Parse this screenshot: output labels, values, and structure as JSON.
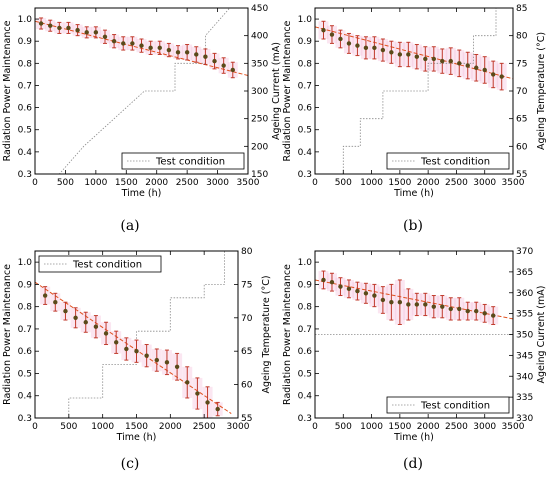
{
  "chart_data": [
    {
      "id": "a",
      "type": "line",
      "caption": "(a)",
      "xlabel": "Time (h)",
      "ylabel": "Radiation Power Maintenance",
      "y2label": "Ageing Current (mA)",
      "xlim": [
        0,
        3500
      ],
      "ylim": [
        0.3,
        1.05
      ],
      "y2lim": [
        150,
        450
      ],
      "xticks": [
        "0",
        "500",
        "1000",
        "1500",
        "2000",
        "2500",
        "3000",
        "3500"
      ],
      "yticks": [
        "0.3",
        "0.4",
        "0.5",
        "0.6",
        "0.7",
        "0.8",
        "0.9",
        "1.0"
      ],
      "y2ticks": [
        "150",
        "200",
        "250",
        "300",
        "350",
        "400",
        "450"
      ],
      "legend": {
        "label": "Test condition",
        "position": "lower-right"
      },
      "series": [
        {
          "x": [
            100,
            250,
            400,
            550,
            700,
            850,
            1000,
            1150,
            1300,
            1450,
            1600,
            1750,
            1900,
            2050,
            2200,
            2350,
            2500,
            2650,
            2800,
            2950,
            3100,
            3250
          ],
          "y": [
            0.98,
            0.97,
            0.96,
            0.96,
            0.95,
            0.94,
            0.94,
            0.92,
            0.9,
            0.89,
            0.89,
            0.88,
            0.87,
            0.87,
            0.86,
            0.85,
            0.85,
            0.84,
            0.83,
            0.81,
            0.79,
            0.77
          ],
          "err": [
            0.025,
            0.025,
            0.025,
            0.025,
            0.025,
            0.025,
            0.025,
            0.03,
            0.03,
            0.03,
            0.03,
            0.03,
            0.03,
            0.03,
            0.03,
            0.03,
            0.035,
            0.035,
            0.035,
            0.035,
            0.035,
            0.035
          ]
        }
      ],
      "fit": {
        "x": [
          0,
          3500
        ],
        "y": [
          0.99,
          0.745
        ]
      },
      "condition": {
        "x": [
          0,
          400,
          800,
          800,
          1300,
          1300,
          1800,
          1800,
          2300,
          2300,
          2800,
          2800,
          3200,
          3500
        ],
        "y": [
          150,
          150,
          200,
          200,
          250,
          250,
          300,
          300,
          300,
          350,
          350,
          400,
          450,
          450
        ]
      }
    },
    {
      "id": "b",
      "type": "line",
      "caption": "(b)",
      "xlabel": "Time (h)",
      "ylabel": "Radiation Power Maintenance",
      "y2label": "Ageing Temperature (°C)",
      "xlim": [
        0,
        3500
      ],
      "ylim": [
        0.3,
        1.05
      ],
      "y2lim": [
        55,
        85
      ],
      "xticks": [
        "0",
        "500",
        "1000",
        "1500",
        "2000",
        "2500",
        "3000",
        "3500"
      ],
      "yticks": [
        "0.3",
        "0.4",
        "0.5",
        "0.6",
        "0.7",
        "0.8",
        "0.9",
        "1.0"
      ],
      "y2ticks": [
        "55",
        "60",
        "65",
        "70",
        "75",
        "80",
        "85"
      ],
      "legend": {
        "label": "Test condition",
        "position": "lower-right"
      },
      "series": [
        {
          "x": [
            150,
            300,
            450,
            600,
            750,
            900,
            1050,
            1200,
            1350,
            1500,
            1650,
            1800,
            1950,
            2100,
            2250,
            2400,
            2550,
            2700,
            2850,
            3000,
            3150,
            3300
          ],
          "y": [
            0.95,
            0.93,
            0.91,
            0.89,
            0.88,
            0.87,
            0.87,
            0.86,
            0.85,
            0.84,
            0.84,
            0.83,
            0.82,
            0.82,
            0.81,
            0.81,
            0.8,
            0.79,
            0.78,
            0.77,
            0.75,
            0.74
          ],
          "err": [
            0.04,
            0.04,
            0.04,
            0.045,
            0.045,
            0.05,
            0.05,
            0.05,
            0.05,
            0.055,
            0.055,
            0.055,
            0.055,
            0.055,
            0.055,
            0.06,
            0.06,
            0.06,
            0.06,
            0.06,
            0.06,
            0.06
          ]
        }
      ],
      "fit": {
        "x": [
          0,
          3500
        ],
        "y": [
          0.965,
          0.73
        ]
      },
      "condition": {
        "x": [
          500,
          500,
          800,
          800,
          1200,
          1200,
          1600,
          1600,
          2000,
          2000,
          2400,
          2400,
          2800,
          2800,
          3200,
          3200
        ],
        "y": [
          55,
          60,
          60,
          65,
          65,
          70,
          70,
          70,
          70,
          75,
          75,
          75,
          75,
          80,
          80,
          85
        ]
      }
    },
    {
      "id": "c",
      "type": "line",
      "caption": "(c)",
      "xlabel": "Time (h)",
      "ylabel": "Radiation Power Maintenance",
      "y2label": "Ageing Temperature (°C)",
      "xlim": [
        0,
        3000
      ],
      "ylim": [
        0.3,
        1.05
      ],
      "y2lim": [
        55,
        80
      ],
      "xticks": [
        "0",
        "500",
        "1000",
        "1500",
        "2000",
        "2500",
        "3000"
      ],
      "yticks": [
        "0.3",
        "0.4",
        "0.5",
        "0.6",
        "0.7",
        "0.8",
        "0.9",
        "1.0"
      ],
      "y2ticks": [
        "55",
        "60",
        "65",
        "70",
        "75",
        "80"
      ],
      "legend": {
        "label": "Test condition",
        "position": "top-left"
      },
      "series": [
        {
          "x": [
            150,
            300,
            450,
            600,
            750,
            900,
            1050,
            1200,
            1350,
            1500,
            1650,
            1800,
            1950,
            2100,
            2250,
            2400,
            2550,
            2700
          ],
          "y": [
            0.85,
            0.82,
            0.78,
            0.75,
            0.73,
            0.71,
            0.68,
            0.64,
            0.61,
            0.6,
            0.58,
            0.56,
            0.55,
            0.53,
            0.46,
            0.41,
            0.37,
            0.34
          ],
          "err": [
            0.04,
            0.04,
            0.04,
            0.045,
            0.045,
            0.05,
            0.05,
            0.05,
            0.05,
            0.05,
            0.05,
            0.05,
            0.055,
            0.06,
            0.07,
            0.07,
            0.07,
            0.03
          ]
        }
      ],
      "fit": {
        "x": [
          0,
          2900
        ],
        "y": [
          0.91,
          0.32
        ]
      },
      "condition": {
        "x": [
          500,
          500,
          1000,
          1000,
          1500,
          1500,
          2000,
          2000,
          2500,
          2500,
          2800,
          2800
        ],
        "y": [
          55,
          58,
          58,
          63,
          63,
          68,
          68,
          73,
          73,
          75,
          75,
          80
        ]
      }
    },
    {
      "id": "d",
      "type": "line",
      "caption": "(d)",
      "xlabel": "Time (h)",
      "ylabel": "Radiation Power Maintenance",
      "y2label": "Ageing Current (mA)",
      "xlim": [
        0,
        3500
      ],
      "ylim": [
        0.3,
        1.05
      ],
      "y2lim": [
        330,
        370
      ],
      "xticks": [
        "0",
        "500",
        "1000",
        "1500",
        "2000",
        "2500",
        "3000",
        "3500"
      ],
      "yticks": [
        "0.3",
        "0.4",
        "0.5",
        "0.6",
        "0.7",
        "0.8",
        "0.9",
        "1.0"
      ],
      "y2ticks": [
        "330",
        "335",
        "340",
        "345",
        "350",
        "355",
        "360",
        "365",
        "370"
      ],
      "legend": {
        "label": "Test condition",
        "position": "lower-right"
      },
      "series": [
        {
          "x": [
            150,
            300,
            450,
            600,
            750,
            900,
            1050,
            1200,
            1350,
            1500,
            1650,
            1800,
            1950,
            2100,
            2250,
            2400,
            2550,
            2700,
            2850,
            3000,
            3150
          ],
          "y": [
            0.92,
            0.91,
            0.89,
            0.88,
            0.87,
            0.86,
            0.85,
            0.83,
            0.82,
            0.82,
            0.81,
            0.81,
            0.81,
            0.8,
            0.8,
            0.79,
            0.79,
            0.78,
            0.78,
            0.77,
            0.76
          ],
          "err": [
            0.04,
            0.04,
            0.04,
            0.04,
            0.04,
            0.045,
            0.05,
            0.06,
            0.08,
            0.1,
            0.07,
            0.05,
            0.05,
            0.05,
            0.05,
            0.05,
            0.05,
            0.04,
            0.04,
            0.04,
            0.04
          ]
        }
      ],
      "fit": {
        "x": [
          0,
          3500
        ],
        "y": [
          0.92,
          0.745
        ]
      },
      "condition": {
        "x": [
          0,
          3500
        ],
        "y": [
          350,
          350
        ]
      }
    }
  ]
}
